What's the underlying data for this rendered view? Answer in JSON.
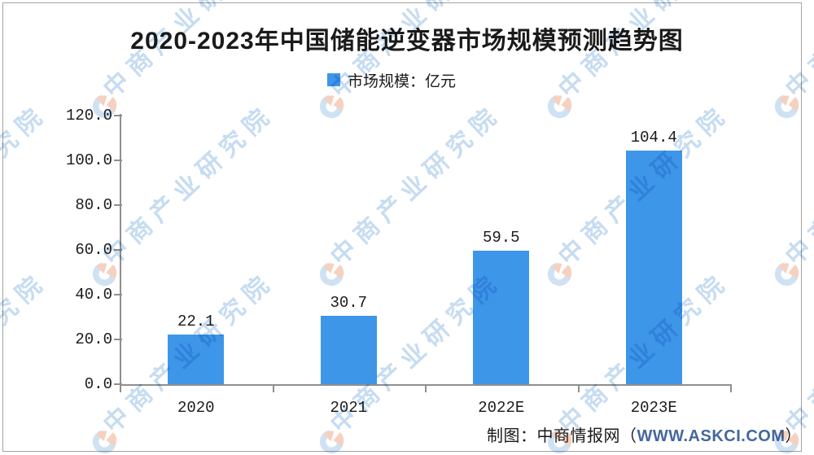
{
  "title": "2020-2023年中国储能逆变器市场规模预测趋势图",
  "legend": {
    "label": "市场规模：亿元"
  },
  "chart_data": {
    "type": "bar",
    "title": "2020-2023年中国储能逆变器市场规模预测趋势图",
    "categories": [
      "2020",
      "2021",
      "2022E",
      "2023E"
    ],
    "values": [
      22.1,
      30.7,
      59.5,
      104.4
    ],
    "value_labels": [
      "22.1",
      "30.7",
      "59.5",
      "104.4"
    ],
    "series_name": "市场规模",
    "unit": "亿元",
    "xlabel": "",
    "ylabel": "",
    "ylim": [
      0,
      120
    ],
    "ytick_step": 20,
    "ytick_labels": [
      "0.0",
      "20.0",
      "40.0",
      "60.0",
      "80.0",
      "100.0",
      "120.0"
    ],
    "grid": false,
    "legend_position": "top",
    "bar_color": "#3E96E8"
  },
  "footer": {
    "prefix": "制图：中商情报网（",
    "url": "WWW.ASKCI.COM",
    "suffix": "）"
  },
  "watermark": {
    "text": "中商产业研究院",
    "text_color": "#c6dcf1",
    "logo_blue": "#cfe2f4",
    "logo_peach": "#f6d1c0"
  },
  "colors": {
    "bar": "#3E96E8",
    "axis": "#8f8f8f",
    "url_blue": "#44689D",
    "text": "#1a1a1a"
  }
}
